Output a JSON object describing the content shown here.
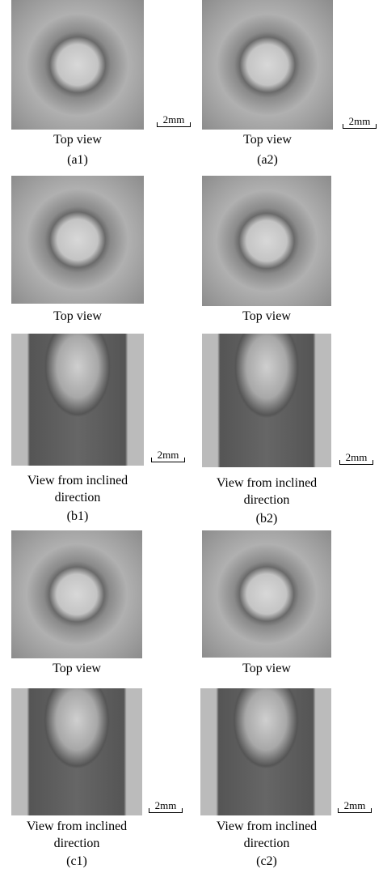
{
  "panels": [
    {
      "label": "(a1)",
      "views": [
        {
          "caption": "Top view",
          "scale_bar": "2mm"
        }
      ]
    },
    {
      "label": "(a2)",
      "views": [
        {
          "caption": "Top view",
          "scale_bar": "2mm"
        }
      ]
    },
    {
      "label": "(b1)",
      "views": [
        {
          "caption": "Top view"
        },
        {
          "caption": "View from inclined direction",
          "scale_bar": "2mm"
        }
      ]
    },
    {
      "label": "(b2)",
      "views": [
        {
          "caption": "Top view"
        },
        {
          "caption": "View from inclined direction",
          "scale_bar": "2mm"
        }
      ]
    },
    {
      "label": "(c1)",
      "views": [
        {
          "caption": "Top view"
        },
        {
          "caption": "View from inclined direction",
          "scale_bar": "2mm"
        }
      ]
    },
    {
      "label": "(c2)",
      "views": [
        {
          "caption": "Top view"
        },
        {
          "caption": "View from inclined direction",
          "scale_bar": "2mm"
        }
      ]
    }
  ]
}
